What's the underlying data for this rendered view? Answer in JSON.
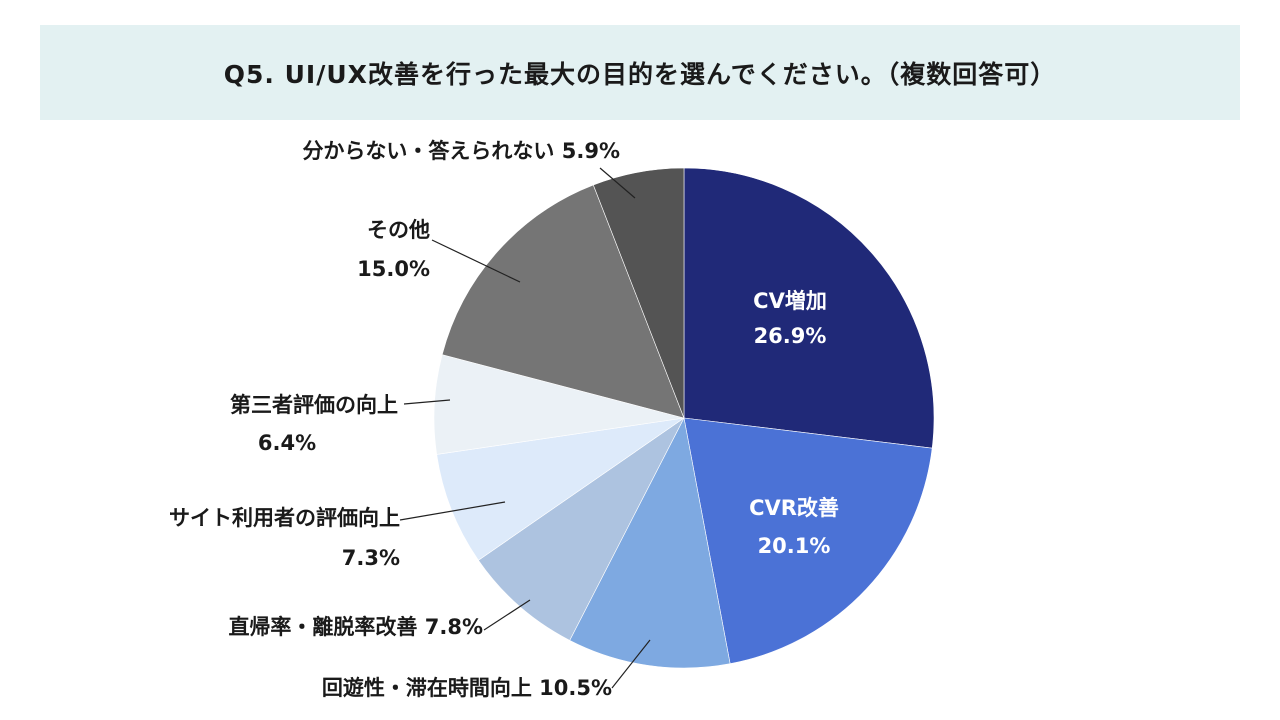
{
  "chart_data": {
    "type": "pie",
    "title": "Q5. UI/UX改善を行った最大の目的を選んでください。（複数回答可）",
    "slices": [
      {
        "label": "CV増加",
        "value": 26.9,
        "value_label": "26.9%",
        "color": "#202978"
      },
      {
        "label": "CVR改善",
        "value": 20.1,
        "value_label": "20.1%",
        "color": "#4b72d6"
      },
      {
        "label": "回遊性・滞在時間向上",
        "value": 10.5,
        "value_label": "10.5%",
        "color": "#7ea9e1"
      },
      {
        "label": "直帰率・離脱率改善",
        "value": 7.8,
        "value_label": "7.8%",
        "color": "#adc3e0"
      },
      {
        "label": "サイト利用者の評価向上",
        "value": 7.3,
        "value_label": "7.3%",
        "color": "#ddeafa"
      },
      {
        "label": "第三者評価の向上",
        "value": 6.4,
        "value_label": "6.4%",
        "color": "#ebf1f6"
      },
      {
        "label": "その他",
        "value": 15.0,
        "value_label": "15.0%",
        "color": "#757575"
      },
      {
        "label": "分からない・答えられない",
        "value": 5.9,
        "value_label": "5.9%",
        "color": "#545454"
      }
    ]
  }
}
